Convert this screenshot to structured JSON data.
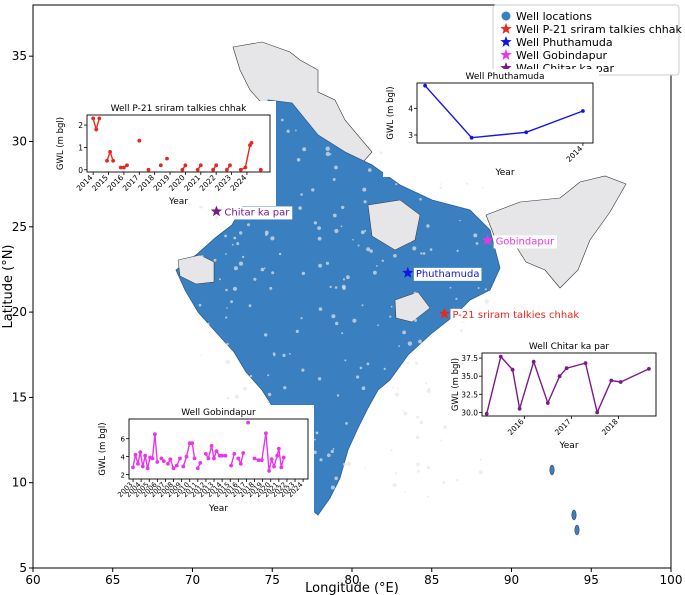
{
  "chart_data": [
    {
      "id": "main-map",
      "type": "scatter",
      "xlabel": "Longitude (°E)",
      "ylabel": "Latitude (°N)",
      "xlim": [
        60,
        100
      ],
      "ylim": [
        5,
        38
      ],
      "xticks": [
        60,
        65,
        70,
        75,
        80,
        85,
        90,
        95,
        100
      ],
      "yticks": [
        5,
        10,
        15,
        20,
        25,
        30,
        35
      ],
      "grid": false,
      "legend_position": "top-right",
      "legend": [
        {
          "label": "Well locations",
          "marker": "circle",
          "color": "#3a7fc0"
        },
        {
          "label": "Well P-21 sriram talkies chhak",
          "marker": "star",
          "color": "#e8281e"
        },
        {
          "label": "Well Phuthamuda",
          "marker": "star",
          "color": "#1414e6"
        },
        {
          "label": "Well Gobindapur",
          "marker": "star",
          "color": "#e836e8"
        },
        {
          "label": "Well Chitar ka par",
          "marker": "star",
          "color": "#7b1a8a"
        }
      ],
      "highlighted_wells": [
        {
          "name": "Chitar ka par",
          "lon": 71.5,
          "lat": 25.9,
          "color": "#7b1a8a"
        },
        {
          "name": "Gobindapur",
          "lon": 88.5,
          "lat": 24.2,
          "color": "#e836e8"
        },
        {
          "name": "Phuthamuda",
          "lon": 83.5,
          "lat": 22.3,
          "color": "#1414e6"
        },
        {
          "name": "P-21 sriram talkies chhak",
          "lon": 85.8,
          "lat": 19.9,
          "color": "#e8281e"
        }
      ]
    },
    {
      "id": "inset-p21",
      "type": "line",
      "title": "Well P-21 sriram talkies chhak",
      "xlabel": "Year",
      "ylabel": "GWL (m bgl)",
      "color": "#e8281e",
      "xlim": [
        2013.6,
        2025.5
      ],
      "ylim": [
        -0.1,
        2.45
      ],
      "yticks": [
        0,
        1,
        2
      ],
      "xticks": [
        2014,
        2015,
        2016,
        2017,
        2018,
        2019,
        2020,
        2021,
        2022,
        2023,
        2024
      ],
      "points": [
        [
          2014.0,
          2.3
        ],
        [
          2014.2,
          1.8
        ],
        [
          2014.4,
          2.3
        ],
        [
          2014.9,
          0.4
        ],
        [
          2015.1,
          0.8
        ],
        [
          2015.3,
          0.4
        ],
        [
          2015.8,
          0.1
        ],
        [
          2016.0,
          0.1
        ],
        [
          2016.2,
          0.2
        ],
        [
          2017.0,
          1.3
        ],
        [
          2017.6,
          0.0
        ],
        [
          2018.4,
          0.2
        ],
        [
          2018.8,
          0.5
        ],
        [
          2019.8,
          0.0
        ],
        [
          2020.0,
          0.2
        ],
        [
          2020.8,
          0.0
        ],
        [
          2021.0,
          0.2
        ],
        [
          2021.8,
          0.0
        ],
        [
          2022.0,
          0.2
        ],
        [
          2022.7,
          0.0
        ],
        [
          2022.9,
          0.2
        ],
        [
          2023.6,
          0.0
        ],
        [
          2023.9,
          0.1
        ],
        [
          2024.2,
          1.1
        ],
        [
          2024.3,
          1.2
        ],
        [
          2024.9,
          0.0
        ]
      ],
      "line_groups": [
        [
          0,
          1,
          2
        ],
        [
          3,
          4,
          5
        ],
        [
          6,
          7,
          8
        ],
        [
          9
        ],
        [
          10
        ],
        [
          11
        ],
        [
          12
        ],
        [
          13,
          14
        ],
        [
          15,
          16
        ],
        [
          17,
          18
        ],
        [
          19,
          20
        ],
        [
          21,
          22,
          23,
          24
        ],
        [
          25
        ]
      ]
    },
    {
      "id": "inset-phuthamuda",
      "type": "line",
      "title": "Well Phuthamuda",
      "xlabel": "Year",
      "ylabel": "GWL (m bgl)",
      "color": "#1414e6",
      "xlim": [
        2013.18,
        2014.05
      ],
      "ylim": [
        2.7,
        4.95
      ],
      "yticks": [
        3,
        4
      ],
      "xticks": [
        2014
      ],
      "points": [
        [
          2013.22,
          4.85
        ],
        [
          2013.45,
          2.9
        ],
        [
          2013.72,
          3.1
        ],
        [
          2014.0,
          3.9
        ]
      ]
    },
    {
      "id": "inset-chitar",
      "type": "line",
      "title": "Well Chitar ka par",
      "xlabel": "Year",
      "ylabel": "GWL (m bgl)",
      "color": "#7b1a8a",
      "xlim": [
        2015.1,
        2018.8
      ],
      "ylim": [
        29.5,
        38.2
      ],
      "yticks": [
        30.0,
        32.5,
        35.0,
        37.5
      ],
      "xticks": [
        2016,
        2017,
        2018
      ],
      "points": [
        [
          2015.2,
          29.8
        ],
        [
          2015.5,
          37.7
        ],
        [
          2015.75,
          35.9
        ],
        [
          2015.9,
          30.5
        ],
        [
          2016.2,
          37.0
        ],
        [
          2016.5,
          31.3
        ],
        [
          2016.75,
          35.0
        ],
        [
          2016.9,
          36.1
        ],
        [
          2017.3,
          36.8
        ],
        [
          2017.55,
          30.0
        ],
        [
          2017.85,
          34.4
        ],
        [
          2018.05,
          34.2
        ],
        [
          2018.65,
          36.0
        ]
      ]
    },
    {
      "id": "inset-gobindapur",
      "type": "line",
      "title": "Well Gobindapur",
      "xlabel": "Year",
      "ylabel": "GWL (m bgl)",
      "color": "#e836e8",
      "xlim": [
        2002.5,
        2024.6
      ],
      "ylim": [
        1.5,
        8.2
      ],
      "yticks": [
        2,
        4,
        6
      ],
      "xticks": [
        2003,
        2004,
        2005,
        2006,
        2007,
        2008,
        2009,
        2010,
        2011,
        2012,
        2013,
        2014,
        2015,
        2016,
        2017,
        2018,
        2019,
        2020,
        2021,
        2022,
        2023,
        2024
      ],
      "points": [
        [
          2003.0,
          2.8
        ],
        [
          2003.3,
          4.2
        ],
        [
          2003.6,
          3.2
        ],
        [
          2003.9,
          4.5
        ],
        [
          2004.2,
          2.9
        ],
        [
          2004.5,
          4.1
        ],
        [
          2004.8,
          2.7
        ],
        [
          2005.1,
          3.9
        ],
        [
          2005.4,
          3.8
        ],
        [
          2005.7,
          6.5
        ],
        [
          2006.0,
          3.4
        ],
        [
          2006.5,
          3.8
        ],
        [
          2006.8,
          3.5
        ],
        [
          2007.3,
          3.2
        ],
        [
          2007.6,
          3.7
        ],
        [
          2008.0,
          2.7
        ],
        [
          2008.4,
          3.0
        ],
        [
          2008.8,
          3.8
        ],
        [
          2009.2,
          2.9
        ],
        [
          2009.6,
          4.0
        ],
        [
          2010.0,
          5.5
        ],
        [
          2010.3,
          5.5
        ],
        [
          2010.6,
          3.8
        ],
        [
          2011.0,
          2.7
        ],
        [
          2011.3,
          3.3
        ],
        [
          2012.0,
          4.3
        ],
        [
          2012.3,
          3.8
        ],
        [
          2012.7,
          5.2
        ],
        [
          2013.0,
          3.8
        ],
        [
          2013.3,
          4.6
        ],
        [
          2013.7,
          4.1
        ],
        [
          2014.0,
          4.1
        ],
        [
          2014.4,
          4.1
        ],
        [
          2015.1,
          3.0
        ],
        [
          2015.5,
          4.3
        ],
        [
          2016.0,
          3.8
        ],
        [
          2016.3,
          3.2
        ],
        [
          2016.6,
          4.4
        ],
        [
          2017.2,
          7.8
        ],
        [
          2018.0,
          3.8
        ],
        [
          2018.5,
          3.6
        ],
        [
          2018.9,
          3.6
        ],
        [
          2019.4,
          6.6
        ],
        [
          2019.8,
          2.4
        ],
        [
          2020.1,
          3.7
        ],
        [
          2020.4,
          2.9
        ],
        [
          2020.8,
          4.1
        ],
        [
          2021.0,
          4.9
        ],
        [
          2021.3,
          2.8
        ],
        [
          2021.6,
          3.9
        ]
      ],
      "line_groups": [
        [
          0,
          1,
          2,
          3,
          4,
          5,
          6,
          7,
          8,
          9,
          10
        ],
        [
          11,
          12
        ],
        [
          13,
          14,
          15,
          16,
          17
        ],
        [
          18,
          19,
          20,
          21,
          22
        ],
        [
          23,
          24
        ],
        [
          25,
          26,
          27,
          28,
          29,
          30
        ],
        [
          31
        ],
        [
          32
        ],
        [
          33,
          34
        ],
        [
          35,
          36,
          37
        ],
        [
          38
        ],
        [
          39,
          40
        ],
        [
          41,
          42,
          43,
          44,
          45,
          46,
          47,
          48,
          49
        ]
      ]
    }
  ]
}
